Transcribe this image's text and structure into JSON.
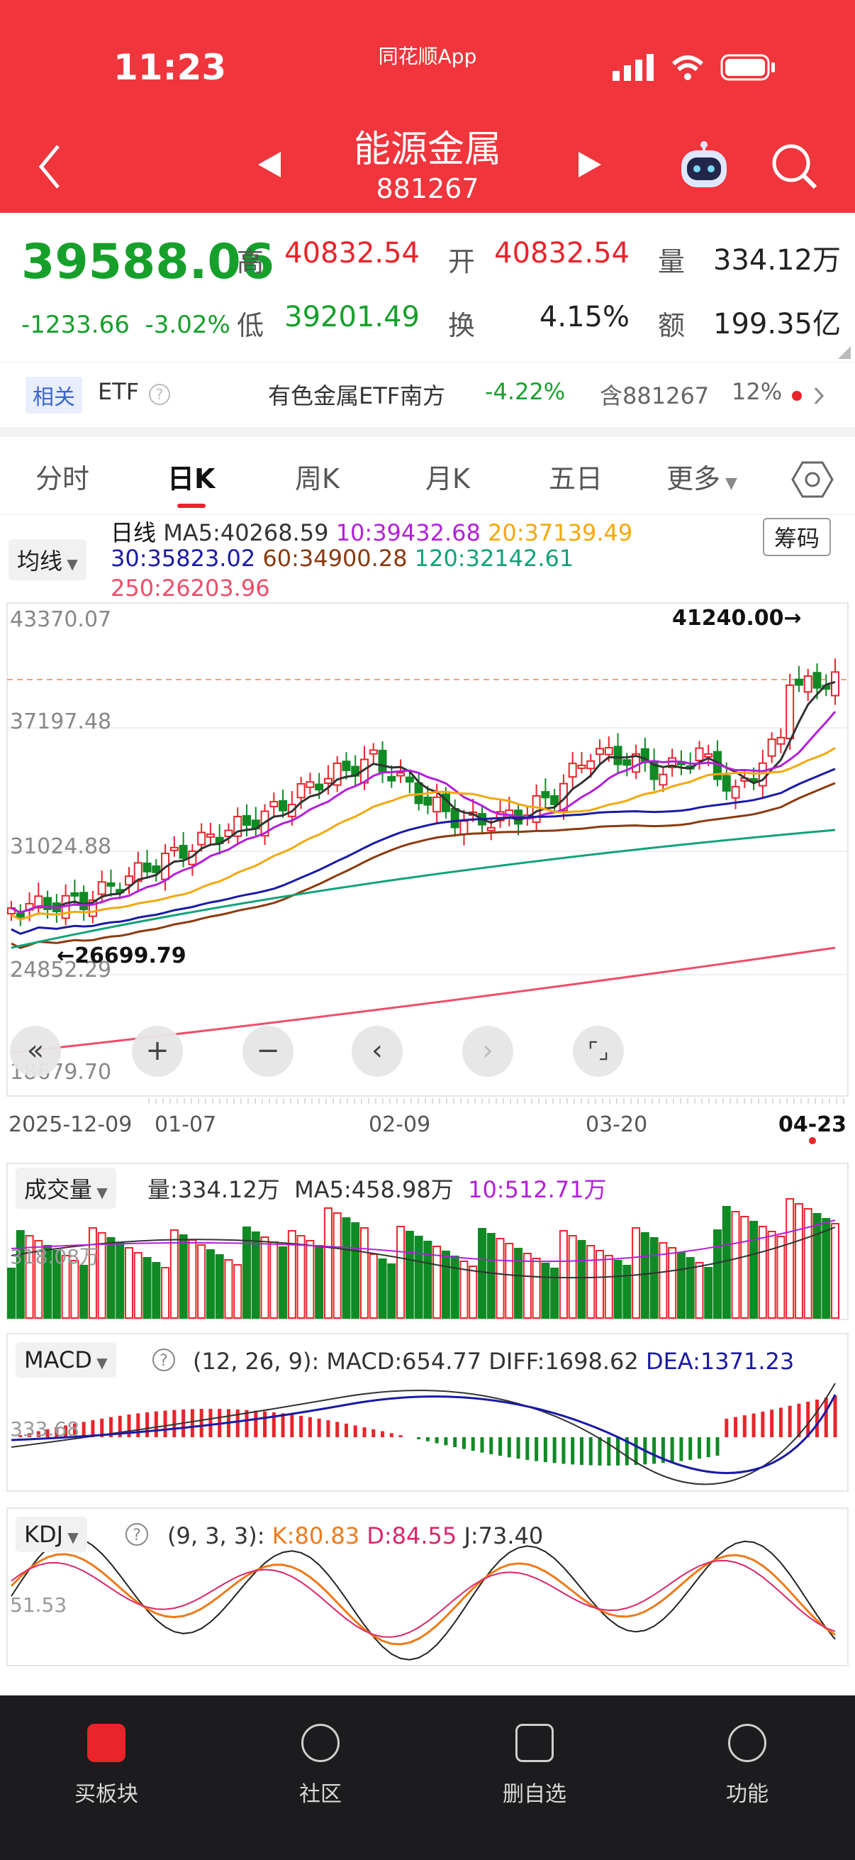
{
  "status": {
    "time": "11:23",
    "app": "同花顺App"
  },
  "header": {
    "title": "能源金属",
    "code": "881267"
  },
  "quote": {
    "price": "39588.06",
    "change": "-1233.66",
    "change_pct": "-3.02%",
    "labels": {
      "high": "高",
      "open": "开",
      "volume": "量",
      "low": "低",
      "turnover": "换",
      "amount": "额"
    },
    "high": "40832.54",
    "open": "40832.54",
    "volume": "334.12万",
    "low": "39201.49",
    "turnover": "4.15%",
    "amount": "199.35亿"
  },
  "etf": {
    "tag": "相关",
    "label": "ETF",
    "name": "有色金属ETF南方",
    "change": "-4.22%",
    "contains": "含881267",
    "weight": "12%"
  },
  "tabs": [
    "分时",
    "日K",
    "周K",
    "月K",
    "五日",
    "更多"
  ],
  "kline": {
    "indicator_selector": "均线",
    "chip_button": "筹码",
    "ma": {
      "title": "日线",
      "ma5": "MA5:40268.59",
      "ma10": "10:39432.68",
      "ma20": "20:37139.49",
      "ma30": "30:35823.02",
      "ma60": "60:34900.28",
      "ma120": "120:32142.61",
      "ma250": "250:26203.96"
    },
    "y_labels": [
      "43370.07",
      "37197.48",
      "31024.88",
      "24852.29",
      "18679.70"
    ],
    "max_label": "41240.00",
    "min_label": "26699.79",
    "x_labels": [
      "2025-12-09",
      "01-07",
      "02-09",
      "03-20",
      "04-23"
    ],
    "colors": {
      "up": "#e9242b",
      "down": "#108a25",
      "ma5": "#333333",
      "ma10": "#b220d9",
      "ma20": "#f4a80b",
      "ma30": "#1a1aa6",
      "ma60": "#8b3a0e",
      "ma120": "#12a27a",
      "ma250": "#ef4d6a"
    }
  },
  "volume": {
    "selector": "成交量",
    "vol": "量:334.12万",
    "ma5": "MA5:458.98万",
    "ma10": "10:512.71万",
    "y_label": "318.08万"
  },
  "macd": {
    "selector": "MACD",
    "params": "(12, 26, 9):",
    "macd": "MACD:654.77",
    "diff": "DIFF:1698.62",
    "dea": "DEA:1371.23",
    "y_label": "333.68"
  },
  "kdj": {
    "selector": "KDJ",
    "params": "(9, 3, 3):",
    "k": "K:80.83",
    "d": "D:84.55",
    "j": "J:73.40",
    "y_label": "51.53"
  },
  "bottom_nav": [
    "买板块",
    "社区",
    "删自选",
    "功能"
  ],
  "icons": [
    "back-arrow-icon",
    "prev-triangle-icon",
    "next-triangle-icon",
    "robot-icon",
    "search-icon",
    "help-icon",
    "settings-hexagon-icon",
    "dropdown-caret-icon"
  ]
}
